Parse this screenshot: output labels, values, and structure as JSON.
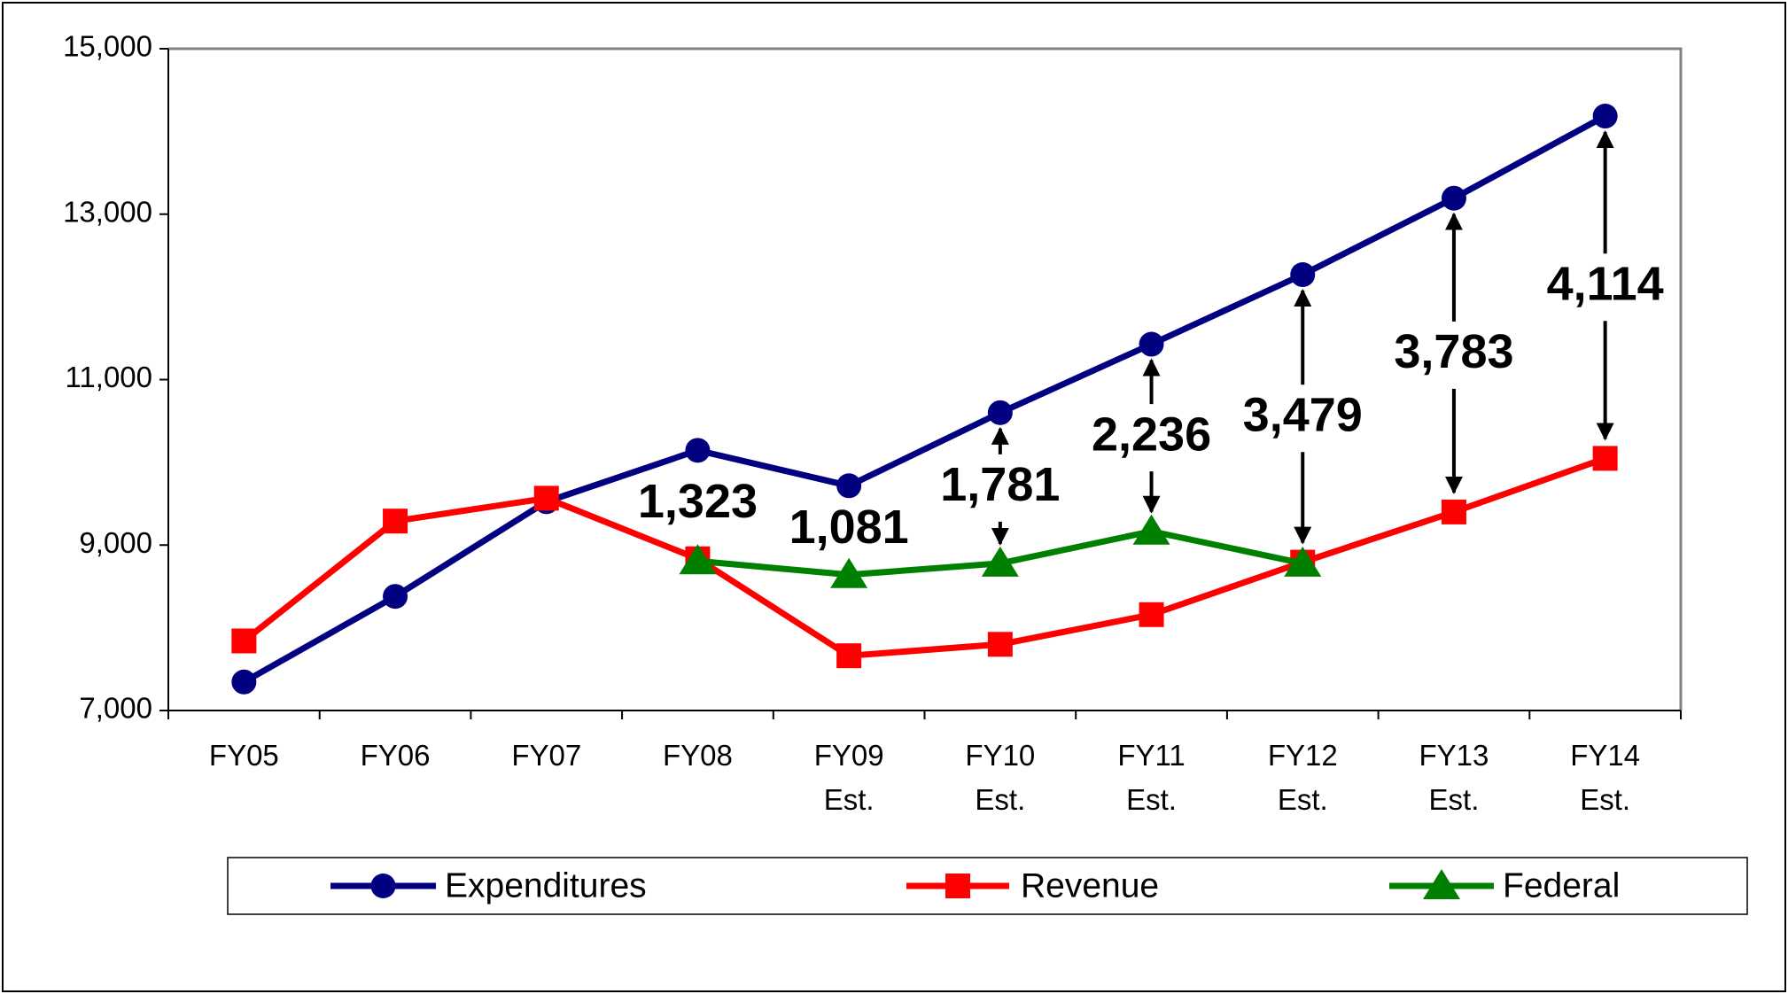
{
  "chart_data": {
    "type": "line",
    "categories": [
      "FY05",
      "FY06",
      "FY07",
      "FY08",
      "FY09 Est.",
      "FY10 Est.",
      "FY11 Est.",
      "FY12 Est.",
      "FY13 Est.",
      "FY14 Est."
    ],
    "series": [
      {
        "name": "Expenditures",
        "color": "#000080",
        "marker": "circle",
        "values": [
          7345,
          8379,
          9524,
          10145,
          9717,
          10600,
          11428,
          12269,
          13193,
          14186
        ]
      },
      {
        "name": "Revenue",
        "color": "#ff0000",
        "marker": "square",
        "values": [
          7841,
          9290,
          9566,
          8834,
          7662,
          7800,
          8159,
          8793,
          9400,
          10048
        ]
      },
      {
        "name": "Federal",
        "color": "#008000",
        "marker": "triangle",
        "values": [
          null,
          null,
          null,
          8807,
          8641,
          8779,
          9166,
          8779,
          null,
          null
        ]
      }
    ],
    "ylim": [
      7000,
      15000
    ],
    "yticks": [
      {
        "value": 7000,
        "label": "7,000"
      },
      {
        "value": 9000,
        "label": "9,000"
      },
      {
        "value": 11000,
        "label": "11,000"
      },
      {
        "value": 13000,
        "label": "13,000"
      },
      {
        "value": 15000,
        "label": "15,000"
      }
    ],
    "annotations": [
      {
        "x": "FY08",
        "label": "1,323",
        "arrow": false
      },
      {
        "x": "FY09 Est.",
        "label": "1,081",
        "arrow": false
      },
      {
        "x": "FY10 Est.",
        "label": "1,781",
        "arrow": true
      },
      {
        "x": "FY11 Est.",
        "label": "2,236",
        "arrow": true
      },
      {
        "x": "FY12 Est.",
        "label": "3,479",
        "arrow": true
      },
      {
        "x": "FY13 Est.",
        "label": "3,783",
        "arrow": true
      },
      {
        "x": "FY14 Est.",
        "label": "4,114",
        "arrow": true
      }
    ],
    "grid": false,
    "legend": "bottom"
  }
}
